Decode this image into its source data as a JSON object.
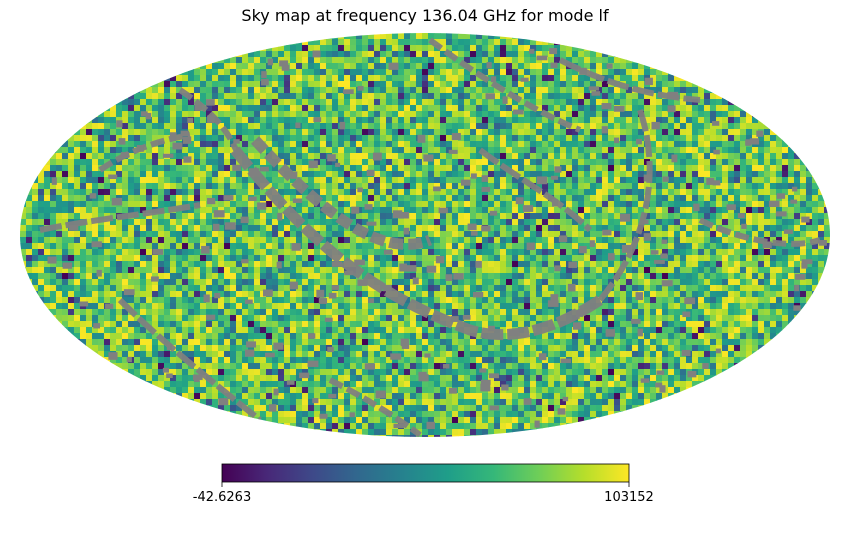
{
  "chart_data": {
    "type": "heatmap",
    "title": "Sky map at frequency 136.04 GHz for mode lf",
    "projection": "mollweide",
    "colormap": "viridis",
    "colormap_stops": [
      "#440154",
      "#482878",
      "#3e4989",
      "#31688e",
      "#26828e",
      "#1f9e89",
      "#35b779",
      "#6ece58",
      "#b5de2b",
      "#fde725"
    ],
    "masked_color": "#808080",
    "colorbar": {
      "orientation": "horizontal",
      "min": -42.6263,
      "max": 103152,
      "min_label": "-42.6263",
      "max_label": "103152"
    }
  }
}
